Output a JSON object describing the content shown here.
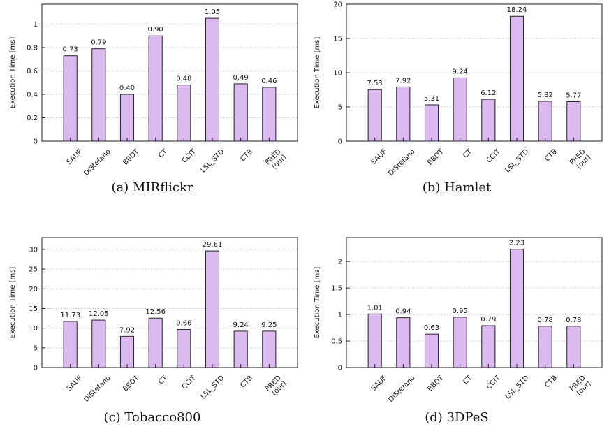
{
  "figure": {
    "colors": {
      "bar_fill": "#dcb9f0",
      "bar_stroke": "#222222",
      "grid": "#b8b8b8",
      "axis": "#222222"
    }
  },
  "chart_data": [
    {
      "type": "bar",
      "caption": "(a) MIRflickr",
      "ylabel": "Execution Time [ms]",
      "categories": [
        "SAUF",
        "DiStefano",
        "BBDT",
        "CT",
        "CCIT",
        "LSL_STD",
        "CTB",
        "PRED\n(our)"
      ],
      "values": [
        0.73,
        0.79,
        0.4,
        0.9,
        0.48,
        1.05,
        0.49,
        0.46
      ],
      "value_labels": [
        "0.73",
        "0.79",
        "0.40",
        "0.90",
        "0.48",
        "1.05",
        "0.49",
        "0.46"
      ],
      "ylim": [
        0,
        1.17
      ],
      "yticks": [
        0,
        0.2,
        0.4,
        0.6,
        0.8,
        1
      ],
      "ytick_labels": [
        "0",
        "0.2",
        "0.4",
        "0.6",
        "0.8",
        "1"
      ],
      "grid": true
    },
    {
      "type": "bar",
      "caption": "(b) Hamlet",
      "ylabel": "Execution Time [ms]",
      "categories": [
        "SAUF",
        "DiStefano",
        "BBDT",
        "CT",
        "CCIT",
        "LSL_STD",
        "CTB",
        "PRED\n(our)"
      ],
      "values": [
        7.53,
        7.92,
        5.31,
        9.24,
        6.12,
        18.24,
        5.82,
        5.77
      ],
      "value_labels": [
        "7.53",
        "7.92",
        "5.31",
        "9.24",
        "6.12",
        "18.24",
        "5.82",
        "5.77"
      ],
      "ylim": [
        0,
        20
      ],
      "yticks": [
        0,
        5,
        10,
        15,
        20
      ],
      "ytick_labels": [
        "0",
        "5",
        "10",
        "15",
        "20"
      ],
      "grid": true
    },
    {
      "type": "bar",
      "caption": "(c) Tobacco800",
      "ylabel": "Execution Time [ms]",
      "categories": [
        "SAUF",
        "DiStefano",
        "BBDT",
        "CT",
        "CCIT",
        "LSL_STD",
        "CTB",
        "PRED\n(our)"
      ],
      "values": [
        11.73,
        12.05,
        7.92,
        12.56,
        9.66,
        29.61,
        9.24,
        9.25
      ],
      "value_labels": [
        "11.73",
        "12.05",
        "7.92",
        "12.56",
        "9.66",
        "29.61",
        "9.24",
        "9.25"
      ],
      "ylim": [
        0,
        33
      ],
      "yticks": [
        0,
        5,
        10,
        15,
        20,
        25,
        30
      ],
      "ytick_labels": [
        "0",
        "5",
        "10",
        "15",
        "20",
        "25",
        "30"
      ],
      "grid": true
    },
    {
      "type": "bar",
      "caption": "(d) 3DPeS",
      "ylabel": "Execution Time [ms]",
      "categories": [
        "SAUF",
        "DiStefano",
        "BBDT",
        "CT",
        "CCIT",
        "LSL_STD",
        "CTB",
        "PRED\n(our)"
      ],
      "values": [
        1.01,
        0.94,
        0.63,
        0.95,
        0.79,
        2.23,
        0.78,
        0.78
      ],
      "value_labels": [
        "1.01",
        "0.94",
        "0.63",
        "0.95",
        "0.79",
        "2.23",
        "0.78",
        "0.78"
      ],
      "ylim": [
        0,
        2.45
      ],
      "yticks": [
        0,
        0.5,
        1,
        1.5,
        2
      ],
      "ytick_labels": [
        "0",
        "0.5",
        "1",
        "1.5",
        "2"
      ],
      "grid": true
    }
  ]
}
